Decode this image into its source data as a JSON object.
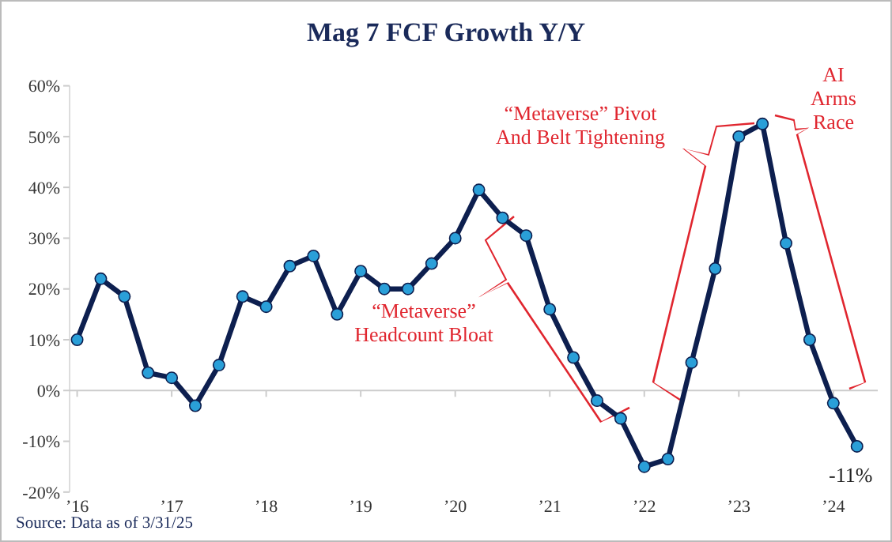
{
  "chart_data": {
    "type": "line",
    "title": "Mag 7 FCF Growth Y/Y",
    "x": [
      2016,
      2016.25,
      2016.5,
      2016.75,
      2017,
      2017.25,
      2017.5,
      2017.75,
      2018,
      2018.25,
      2018.5,
      2018.75,
      2019,
      2019.25,
      2019.5,
      2019.75,
      2020,
      2020.25,
      2020.5,
      2020.75,
      2021,
      2021.25,
      2021.5,
      2021.75,
      2022,
      2022.25,
      2022.5,
      2022.75,
      2023,
      2023.25,
      2023.5,
      2023.75,
      2024,
      2024.25
    ],
    "series": [
      {
        "color": "#0d1f4f",
        "values": [
          10,
          22,
          18.5,
          3.5,
          2.5,
          -3,
          5,
          18.5,
          16.5,
          24.5,
          26.5,
          15,
          23.5,
          20,
          20,
          25,
          30,
          39.5,
          34,
          30.5,
          16,
          6.5,
          -2,
          -5.5,
          -15,
          -13.5,
          5.5,
          24,
          50,
          52.5,
          29,
          10,
          -2.5,
          -11
        ]
      }
    ],
    "xlim": [
      2015.92,
      2024.47
    ],
    "xticks": [
      {
        "value": 2016,
        "label": "’16"
      },
      {
        "value": 2017,
        "label": "’17"
      },
      {
        "value": 2018,
        "label": "’18"
      },
      {
        "value": 2019,
        "label": "’19"
      },
      {
        "value": 2020,
        "label": "’20"
      },
      {
        "value": 2021,
        "label": "’21"
      },
      {
        "value": 2022,
        "label": "’22"
      },
      {
        "value": 2023,
        "label": "’23"
      },
      {
        "value": 2024,
        "label": "’24"
      }
    ],
    "ylim": [
      -20,
      60
    ],
    "yticks": [
      {
        "value": -20,
        "label": "-20%"
      },
      {
        "value": -10,
        "label": "-10%"
      },
      {
        "value": 0,
        "label": "0%"
      },
      {
        "value": 10,
        "label": "10%"
      },
      {
        "value": 20,
        "label": "20%"
      },
      {
        "value": 30,
        "label": "30%"
      },
      {
        "value": 40,
        "label": "40%"
      },
      {
        "value": 50,
        "label": "50%"
      },
      {
        "value": 60,
        "label": "60%"
      }
    ],
    "marker": "circle",
    "line_style": "solid",
    "annotations": [
      "“Metaverse”\nHeadcount Bloat",
      "“Metaverse” Pivot\nAnd Belt Tightening",
      "AI\nArms\nRace",
      {
        "text": "-11%",
        "x": 2024.25,
        "y": -11
      },
      "Source: Data as of 3/31/25"
    ]
  }
}
